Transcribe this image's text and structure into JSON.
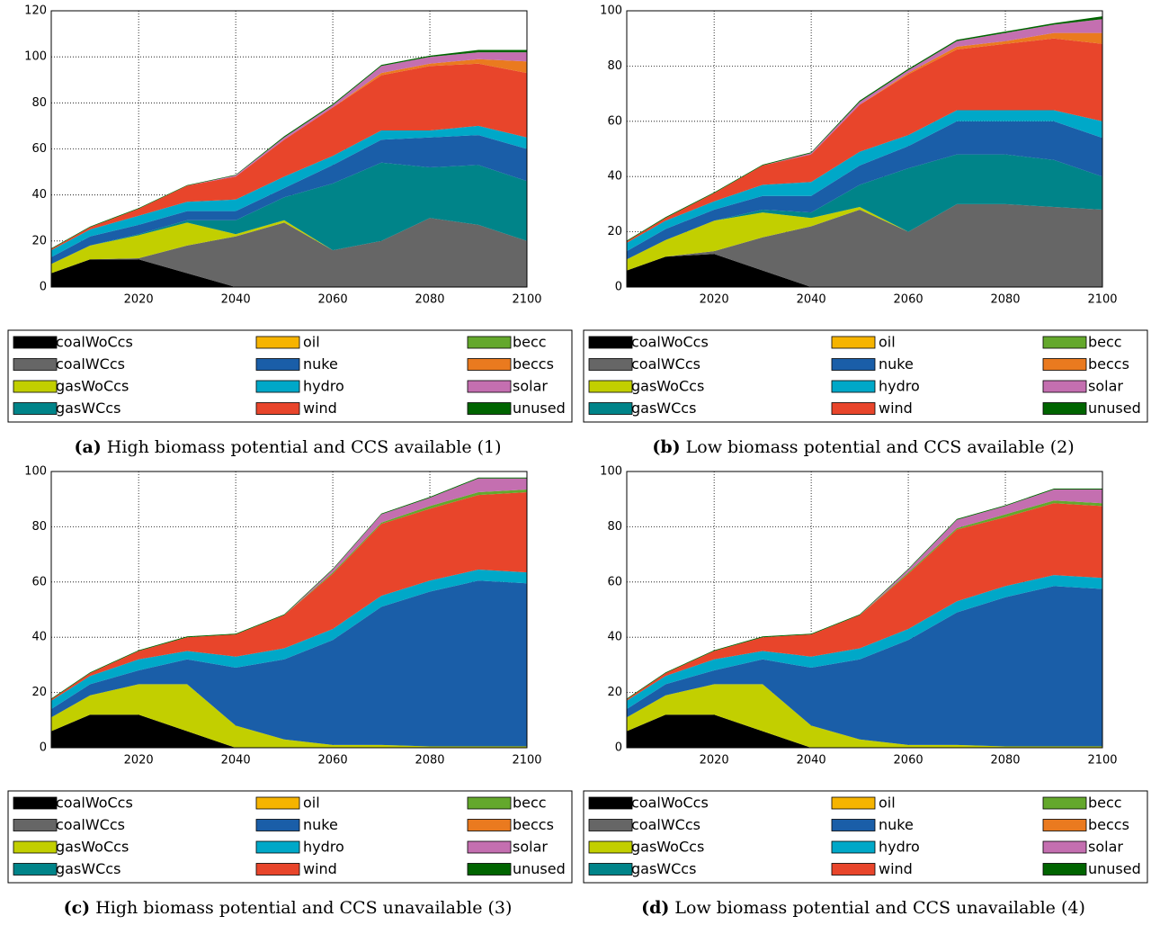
{
  "chart_data": [
    {
      "type": "stacked-area",
      "caption_label": "(a)",
      "caption": "High biomass potential and CCS available (1)",
      "x": [
        2002,
        2010,
        2020,
        2030,
        2040,
        2050,
        2060,
        2070,
        2080,
        2090,
        2100
      ],
      "xlim": [
        2002,
        2100
      ],
      "xticks": [
        2020,
        2040,
        2060,
        2080,
        2100
      ],
      "ylim": [
        0,
        120
      ],
      "yticks": [
        0,
        20,
        40,
        60,
        80,
        100,
        120
      ],
      "grid": true,
      "series": [
        {
          "name": "coalWoCcs",
          "color": "#000000",
          "values": [
            6,
            12,
            12,
            6,
            0,
            0,
            0,
            0,
            0,
            0,
            0
          ]
        },
        {
          "name": "coalWCcs",
          "color": "#666666",
          "values": [
            0,
            0,
            0.5,
            12,
            22,
            28,
            16,
            20,
            30,
            27,
            20
          ]
        },
        {
          "name": "gasWoCcs",
          "color": "#c2cf00",
          "values": [
            4,
            6,
            10,
            10,
            1,
            1,
            0,
            0,
            0,
            0,
            0
          ]
        },
        {
          "name": "gasWCcs",
          "color": "#008489",
          "values": [
            0,
            0,
            0.5,
            1,
            6,
            10,
            29,
            34,
            22,
            26,
            26
          ]
        },
        {
          "name": "oil",
          "color": "#f6b400",
          "values": [
            0,
            0,
            0,
            0,
            0,
            0,
            0,
            0,
            0,
            0,
            0
          ]
        },
        {
          "name": "nuke",
          "color": "#1a5ea8",
          "values": [
            3,
            4,
            4,
            4,
            4,
            4,
            8,
            10,
            13,
            13,
            14
          ]
        },
        {
          "name": "hydro",
          "color": "#00a8c8",
          "values": [
            3,
            3,
            4,
            4,
            5,
            5,
            4,
            4,
            3,
            4,
            5
          ]
        },
        {
          "name": "wind",
          "color": "#e8452b",
          "values": [
            0.5,
            1,
            3,
            7,
            10,
            16,
            21,
            24,
            28,
            27,
            28
          ]
        },
        {
          "name": "becc",
          "color": "#64a82c",
          "values": [
            0,
            0,
            0,
            0,
            0,
            0,
            0,
            0,
            0,
            0,
            0
          ]
        },
        {
          "name": "beccs",
          "color": "#ea7a1f",
          "values": [
            0,
            0,
            0,
            0,
            0,
            0,
            0,
            1,
            1,
            2,
            5
          ]
        },
        {
          "name": "solar",
          "color": "#c46fb0",
          "values": [
            0,
            0,
            0,
            0,
            0.5,
            1,
            1,
            3,
            3,
            3,
            4
          ]
        },
        {
          "name": "unused",
          "color": "#006400",
          "values": [
            0.3,
            0.3,
            0.3,
            0.3,
            0.3,
            0.5,
            0.5,
            0.5,
            0.5,
            1,
            1
          ]
        }
      ]
    },
    {
      "type": "stacked-area",
      "caption_label": "(b)",
      "caption": "Low biomass potential and CCS available (2)",
      "x": [
        2002,
        2010,
        2020,
        2030,
        2040,
        2050,
        2060,
        2070,
        2080,
        2090,
        2100
      ],
      "xlim": [
        2002,
        2100
      ],
      "xticks": [
        2020,
        2040,
        2060,
        2080,
        2100
      ],
      "ylim": [
        0,
        100
      ],
      "yticks": [
        0,
        20,
        40,
        60,
        80,
        100
      ],
      "grid": true,
      "series": [
        {
          "name": "coalWoCcs",
          "color": "#000000",
          "values": [
            6,
            11,
            12,
            6,
            0,
            0,
            0,
            0,
            0,
            0,
            0
          ]
        },
        {
          "name": "coalWCcs",
          "color": "#666666",
          "values": [
            0,
            0,
            1,
            12,
            22,
            28,
            20,
            30,
            30,
            29,
            28
          ]
        },
        {
          "name": "gasWoCcs",
          "color": "#c2cf00",
          "values": [
            4,
            6,
            11,
            9,
            3,
            1,
            0,
            0,
            0,
            0,
            0
          ]
        },
        {
          "name": "gasWCcs",
          "color": "#008489",
          "values": [
            0,
            0,
            0,
            1,
            2,
            8,
            23,
            18,
            18,
            17,
            12
          ]
        },
        {
          "name": "oil",
          "color": "#f6b400",
          "values": [
            0,
            0,
            0,
            0,
            0,
            0,
            0,
            0,
            0,
            0,
            0
          ]
        },
        {
          "name": "nuke",
          "color": "#1a5ea8",
          "values": [
            3,
            4,
            4,
            5,
            6,
            7,
            8,
            12,
            12,
            14,
            14
          ]
        },
        {
          "name": "hydro",
          "color": "#00a8c8",
          "values": [
            3,
            3,
            3,
            4,
            5,
            5,
            4,
            4,
            4,
            4,
            6
          ]
        },
        {
          "name": "wind",
          "color": "#e8452b",
          "values": [
            0.5,
            1,
            3,
            7,
            10,
            17,
            22,
            22,
            24,
            26,
            28
          ]
        },
        {
          "name": "becc",
          "color": "#64a82c",
          "values": [
            0,
            0,
            0,
            0,
            0,
            0,
            0,
            0,
            0,
            0,
            0
          ]
        },
        {
          "name": "beccs",
          "color": "#ea7a1f",
          "values": [
            0,
            0,
            0,
            0,
            0,
            0,
            0.5,
            1,
            1,
            2,
            4
          ]
        },
        {
          "name": "solar",
          "color": "#c46fb0",
          "values": [
            0,
            0,
            0,
            0,
            0.5,
            1,
            1,
            2,
            3,
            3,
            5
          ]
        },
        {
          "name": "unused",
          "color": "#006400",
          "values": [
            0.3,
            0.3,
            0.3,
            0.3,
            0.3,
            0.5,
            0.5,
            0.5,
            0.5,
            0.5,
            1
          ]
        }
      ]
    },
    {
      "type": "stacked-area",
      "caption_label": "(c)",
      "caption": "High biomass potential and CCS unavailable (3)",
      "x": [
        2002,
        2010,
        2020,
        2030,
        2040,
        2050,
        2060,
        2070,
        2080,
        2090,
        2100
      ],
      "xlim": [
        2002,
        2100
      ],
      "xticks": [
        2020,
        2040,
        2060,
        2080,
        2100
      ],
      "ylim": [
        0,
        100
      ],
      "yticks": [
        0,
        20,
        40,
        60,
        80,
        100
      ],
      "grid": true,
      "series": [
        {
          "name": "coalWoCcs",
          "color": "#000000",
          "values": [
            6,
            12,
            12,
            6,
            0,
            0,
            0,
            0,
            0,
            0,
            0
          ]
        },
        {
          "name": "coalWCcs",
          "color": "#666666",
          "values": [
            0,
            0,
            0,
            0,
            0,
            0,
            0,
            0,
            0,
            0,
            0
          ]
        },
        {
          "name": "gasWoCcs",
          "color": "#c2cf00",
          "values": [
            5,
            7,
            11,
            17,
            8,
            3,
            1,
            1,
            0.5,
            0.5,
            0.5
          ]
        },
        {
          "name": "gasWCcs",
          "color": "#008489",
          "values": [
            0,
            0,
            0,
            0,
            0,
            0,
            0,
            0,
            0,
            0,
            0
          ]
        },
        {
          "name": "oil",
          "color": "#f6b400",
          "values": [
            0,
            0,
            0,
            0,
            0,
            0,
            0,
            0,
            0,
            0,
            0
          ]
        },
        {
          "name": "nuke",
          "color": "#1a5ea8",
          "values": [
            3,
            4,
            5,
            9,
            21,
            29,
            38,
            50,
            56,
            60,
            59
          ]
        },
        {
          "name": "hydro",
          "color": "#00a8c8",
          "values": [
            3,
            3,
            4,
            3,
            4,
            4,
            4,
            4,
            4,
            4,
            4
          ]
        },
        {
          "name": "wind",
          "color": "#e8452b",
          "values": [
            0.5,
            1,
            3,
            5,
            8,
            12,
            20,
            26,
            26,
            27,
            29
          ]
        },
        {
          "name": "becc",
          "color": "#64a82c",
          "values": [
            0,
            0,
            0,
            0,
            0,
            0,
            0.5,
            0.5,
            1,
            1,
            1
          ]
        },
        {
          "name": "beccs",
          "color": "#ea7a1f",
          "values": [
            0,
            0,
            0,
            0,
            0,
            0,
            0,
            0,
            0,
            0,
            0
          ]
        },
        {
          "name": "solar",
          "color": "#c46fb0",
          "values": [
            0,
            0,
            0,
            0,
            0,
            0,
            1,
            3,
            3,
            5,
            4
          ]
        },
        {
          "name": "unused",
          "color": "#006400",
          "values": [
            0.3,
            0.3,
            0.3,
            0.3,
            0.3,
            0.3,
            0.3,
            0.3,
            0.3,
            0.3,
            0.3
          ]
        }
      ]
    },
    {
      "type": "stacked-area",
      "caption_label": "(d)",
      "caption": "Low biomass potential and CCS unavailable (4)",
      "x": [
        2002,
        2010,
        2020,
        2030,
        2040,
        2050,
        2060,
        2070,
        2080,
        2090,
        2100
      ],
      "xlim": [
        2002,
        2100
      ],
      "xticks": [
        2020,
        2040,
        2060,
        2080,
        2100
      ],
      "ylim": [
        0,
        100
      ],
      "yticks": [
        0,
        20,
        40,
        60,
        80,
        100
      ],
      "grid": true,
      "series": [
        {
          "name": "coalWoCcs",
          "color": "#000000",
          "values": [
            6,
            12,
            12,
            6,
            0,
            0,
            0,
            0,
            0,
            0,
            0
          ]
        },
        {
          "name": "coalWCcs",
          "color": "#666666",
          "values": [
            0,
            0,
            0,
            0,
            0,
            0,
            0,
            0,
            0,
            0,
            0
          ]
        },
        {
          "name": "gasWoCcs",
          "color": "#c2cf00",
          "values": [
            5,
            7,
            11,
            17,
            8,
            3,
            1,
            1,
            0.5,
            0.5,
            0.5
          ]
        },
        {
          "name": "gasWCcs",
          "color": "#008489",
          "values": [
            0,
            0,
            0,
            0,
            0,
            0,
            0,
            0,
            0,
            0,
            0
          ]
        },
        {
          "name": "oil",
          "color": "#f6b400",
          "values": [
            0,
            0,
            0,
            0,
            0,
            0,
            0,
            0,
            0,
            0,
            0
          ]
        },
        {
          "name": "nuke",
          "color": "#1a5ea8",
          "values": [
            3,
            4,
            5,
            9,
            21,
            29,
            38,
            48,
            54,
            58,
            57
          ]
        },
        {
          "name": "hydro",
          "color": "#00a8c8",
          "values": [
            3,
            3,
            4,
            3,
            4,
            4,
            4,
            4,
            4,
            4,
            4
          ]
        },
        {
          "name": "wind",
          "color": "#e8452b",
          "values": [
            0.5,
            1,
            3,
            5,
            8,
            12,
            20,
            26,
            25,
            26,
            26
          ]
        },
        {
          "name": "becc",
          "color": "#64a82c",
          "values": [
            0,
            0,
            0,
            0,
            0,
            0,
            0.5,
            0.5,
            1,
            1,
            1
          ]
        },
        {
          "name": "beccs",
          "color": "#ea7a1f",
          "values": [
            0,
            0,
            0,
            0,
            0,
            0,
            0,
            0,
            0,
            0,
            0
          ]
        },
        {
          "name": "solar",
          "color": "#c46fb0",
          "values": [
            0,
            0,
            0,
            0,
            0,
            0,
            1,
            3,
            3,
            4,
            5
          ]
        },
        {
          "name": "unused",
          "color": "#006400",
          "values": [
            0.3,
            0.3,
            0.3,
            0.3,
            0.3,
            0.3,
            0.3,
            0.3,
            0.3,
            0.3,
            0.3
          ]
        }
      ]
    }
  ]
}
